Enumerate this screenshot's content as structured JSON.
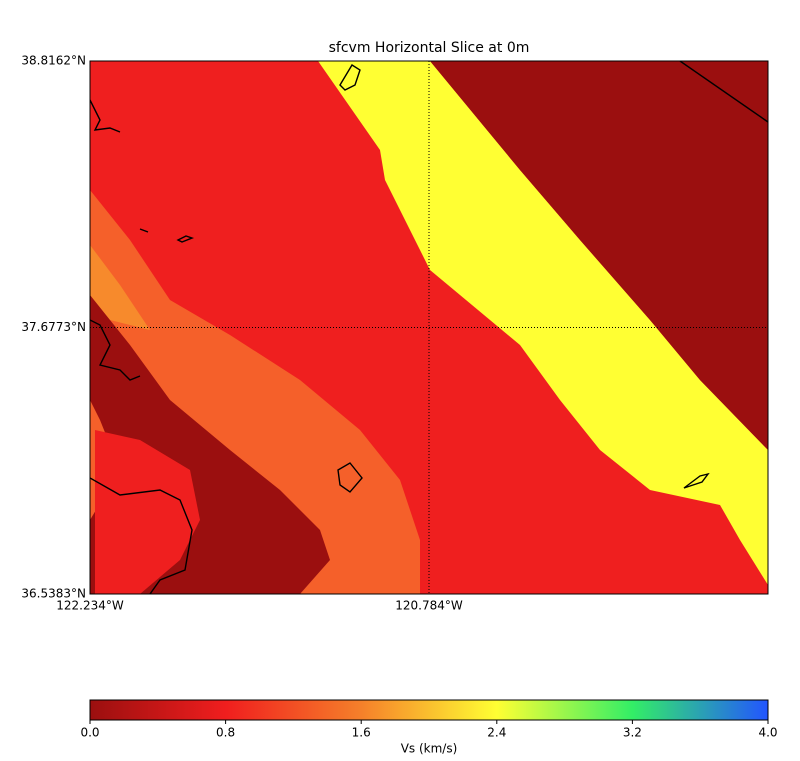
{
  "chart_data": {
    "type": "map-slice",
    "title": "sfcvm Horizontal Slice at 0m",
    "xlim": [
      -122.234,
      -119.334
    ],
    "ylim": [
      36.5383,
      38.8162
    ],
    "xticks": [
      {
        "value": -122.234,
        "label": "122.234°W"
      },
      {
        "value": -120.784,
        "label": "120.784°W"
      }
    ],
    "yticks": [
      {
        "value": 36.5383,
        "label": "36.5383°N"
      },
      {
        "value": 37.6773,
        "label": "37.6773°N"
      },
      {
        "value": 38.8162,
        "label": "38.8162°N"
      }
    ],
    "grid": true,
    "colorbar": {
      "label": "Vs (km/s)",
      "clim": [
        0,
        4
      ],
      "ticks": [
        {
          "value": 0,
          "label": "0.0"
        },
        0.8,
        1.6,
        2.4,
        3.2,
        {
          "value": 4,
          "label": "4.0"
        }
      ],
      "colors": [
        "#9b0f0f",
        "#f01e1e",
        "#f5802a",
        "#ffff33",
        "#33ee66",
        "#2255ff"
      ]
    }
  }
}
